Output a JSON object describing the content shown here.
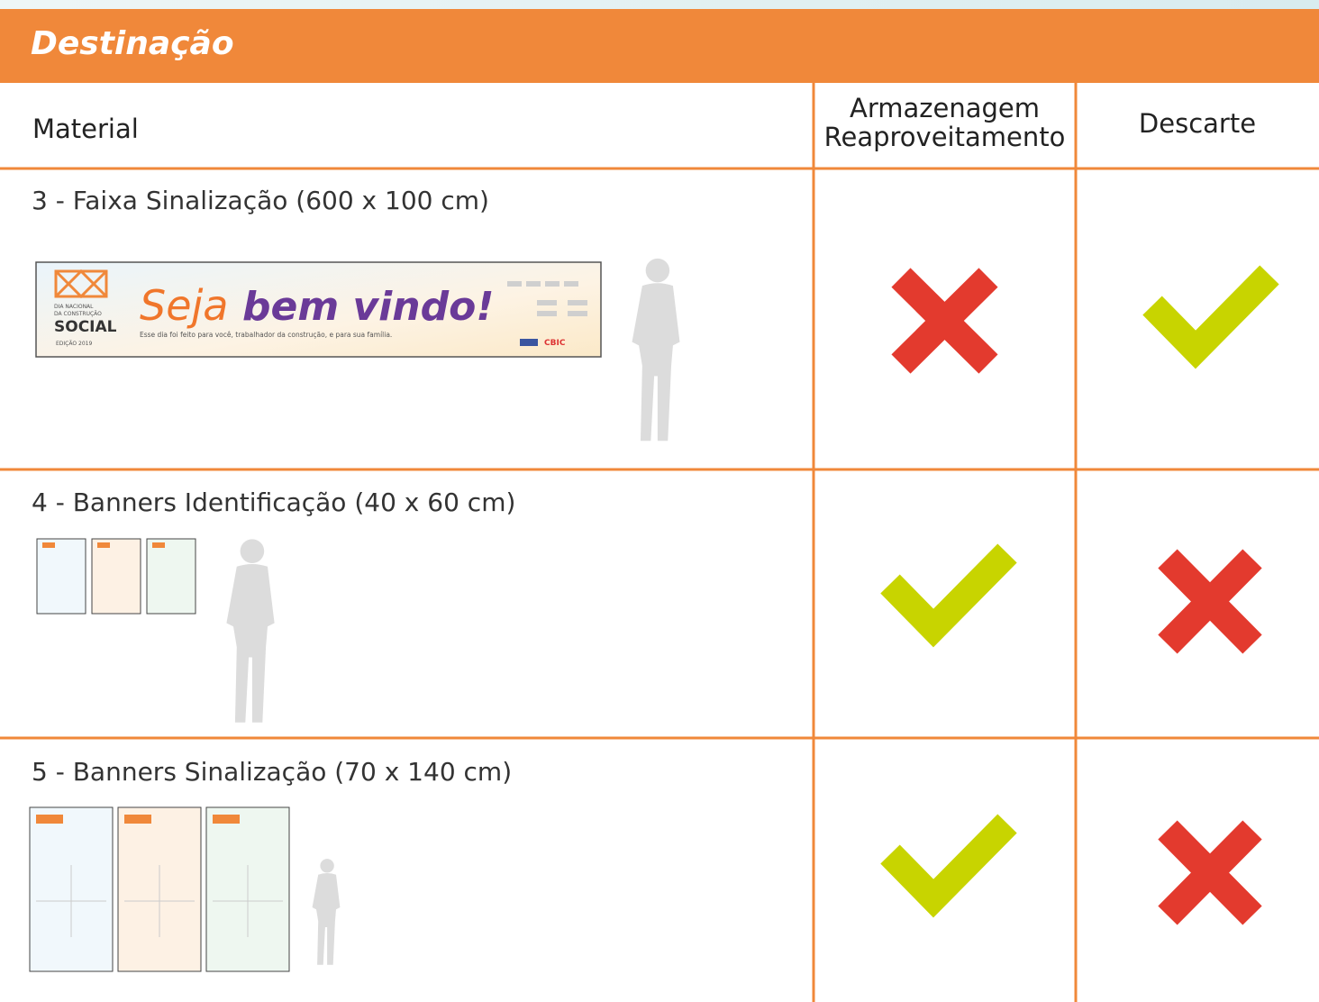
{
  "header": {
    "title": "Destinação"
  },
  "table": {
    "columns": {
      "material": "Material",
      "storage": [
        "Armazenagem",
        "Reaproveitamento"
      ],
      "discard": "Descarte"
    },
    "rows": [
      {
        "label": "3 - Faixa Sinalização (600 x 100 cm)",
        "image": {
          "logo_lines": [
            "DIA NACIONAL",
            "DA CONSTRUÇÃO"
          ],
          "logo_word": "SOCIAL",
          "edition": "EDIÇÃO 2019",
          "greeting_lead": "Seja",
          "greeting_rest": "bem vindo!",
          "tagline": "Esse dia foi feito para você, trabalhador da construção, e para sua família.",
          "sponsor": "CBIC"
        }
      },
      {
        "label": "4 - Banners Identificação (40 x 60 cm)"
      },
      {
        "label": "5 - Banners Sinalização (70 x 140 cm)"
      }
    ]
  }
}
